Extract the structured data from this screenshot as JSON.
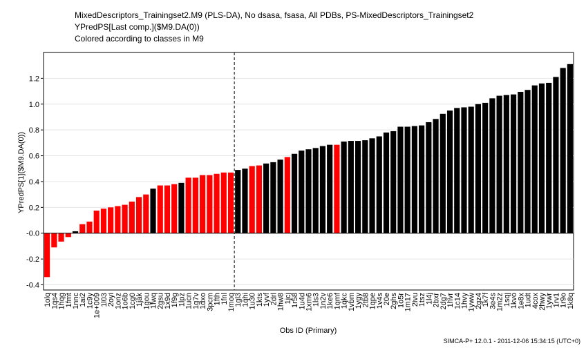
{
  "chart_data": {
    "type": "bar",
    "title": "MixedDescriptors_Trainingset2.M9 (PLS-DA), No dsasa, fsasa, All PDBs, PS-MixedDescriptors_Trainingset2",
    "subtitle": "YPredPS[Last comp.]($M9.DA(0))",
    "subtitle2": "Colored according to classes in M9",
    "y_label": "YPredPS[1]($M9.DA(0))",
    "x_label": "Obs ID (Primary)",
    "footer": "SIMCA-P+ 12.0.1 - 2011-12-06 15:34:15 (UTC+0)",
    "categories": [
      "1olq",
      "1qs4",
      "1hqg",
      "1fmt",
      "1nnc",
      "1ai2",
      "1c9y",
      "1e+009",
      "1l03",
      "2oyi",
      "1onz",
      "1o6b",
      "1cg0",
      "1jak",
      "1gou",
      "1fwq",
      "2gsu",
      "1x9d",
      "1f9g",
      "1lpz",
      "1ucn",
      "1g7v",
      "1dxo",
      "3pcm",
      "1fth",
      "1fnl",
      "1moq",
      "1gl3",
      "1qhi",
      "1u30",
      "1kts",
      "1yvf",
      "2drl",
      "1hw8",
      "1jcj",
      "1r58",
      "1u4d",
      "1xm6",
      "1ls3",
      "1n2v",
      "1ke6",
      "1qmf",
      "1qkc",
      "1vbm",
      "1ygy",
      "2tb8",
      "1qpe",
      "1v4s",
      "20e",
      "2ghs",
      "1o5r",
      "1m17",
      "2ivu",
      "1tsz",
      "1l4j",
      "2bxr",
      "2dg7",
      "1hvr",
      "1c14",
      "1hvy",
      "1yww",
      "2gz4",
      "1k7f",
      "3e4s",
      "1m2z",
      "1sqj",
      "1kvo",
      "1e8x",
      "1udt",
      "4cox",
      "2hwy",
      "1ywr",
      "1rv1",
      "1r9o",
      "1k8q"
    ],
    "values": [
      -0.34,
      -0.11,
      -0.065,
      -0.03,
      0.015,
      0.07,
      0.09,
      0.175,
      0.19,
      0.2,
      0.21,
      0.22,
      0.245,
      0.28,
      0.3,
      0.345,
      0.37,
      0.37,
      0.38,
      0.39,
      0.43,
      0.43,
      0.45,
      0.45,
      0.46,
      0.47,
      0.47,
      0.49,
      0.5,
      0.52,
      0.525,
      0.54,
      0.55,
      0.57,
      0.59,
      0.615,
      0.64,
      0.65,
      0.66,
      0.675,
      0.685,
      0.685,
      0.71,
      0.715,
      0.715,
      0.72,
      0.735,
      0.75,
      0.78,
      0.79,
      0.825,
      0.825,
      0.83,
      0.835,
      0.86,
      0.885,
      0.925,
      0.95,
      0.97,
      0.975,
      0.98,
      1.0,
      1.01,
      1.045,
      1.065,
      1.07,
      1.075,
      1.095,
      1.11,
      1.145,
      1.16,
      1.165,
      1.21,
      1.28,
      1.31
    ],
    "colors": [
      "#ff0000",
      "#ff0000",
      "#ff0000",
      "#ff0000",
      "#000000",
      "#ff0000",
      "#ff0000",
      "#ff0000",
      "#ff0000",
      "#ff0000",
      "#ff0000",
      "#ff0000",
      "#ff0000",
      "#ff0000",
      "#ff0000",
      "#000000",
      "#ff0000",
      "#ff0000",
      "#ff0000",
      "#000000",
      "#ff0000",
      "#ff0000",
      "#ff0000",
      "#ff0000",
      "#ff0000",
      "#ff0000",
      "#ff0000",
      "#000000",
      "#000000",
      "#ff0000",
      "#ff0000",
      "#000000",
      "#000000",
      "#000000",
      "#ff0000",
      "#000000",
      "#000000",
      "#000000",
      "#000000",
      "#000000",
      "#000000",
      "#ff0000",
      "#000000",
      "#000000",
      "#000000",
      "#000000",
      "#000000",
      "#000000",
      "#000000",
      "#000000",
      "#000000",
      "#000000",
      "#000000",
      "#000000",
      "#000000",
      "#000000",
      "#000000",
      "#000000",
      "#000000",
      "#000000",
      "#000000",
      "#000000",
      "#000000",
      "#000000",
      "#000000",
      "#000000",
      "#000000",
      "#000000",
      "#000000",
      "#000000",
      "#000000",
      "#000000",
      "#000000",
      "#000000",
      "#000000"
    ],
    "ylim": [
      -0.44,
      1.4
    ],
    "yticks": [
      -0.4,
      -0.2,
      {
        "value": 0,
        "label": "-0.0"
      },
      0.2,
      0.4,
      0.6,
      0.8,
      {
        "value": 1,
        "label": "1.0"
      },
      1.2
    ],
    "grid": true
  }
}
